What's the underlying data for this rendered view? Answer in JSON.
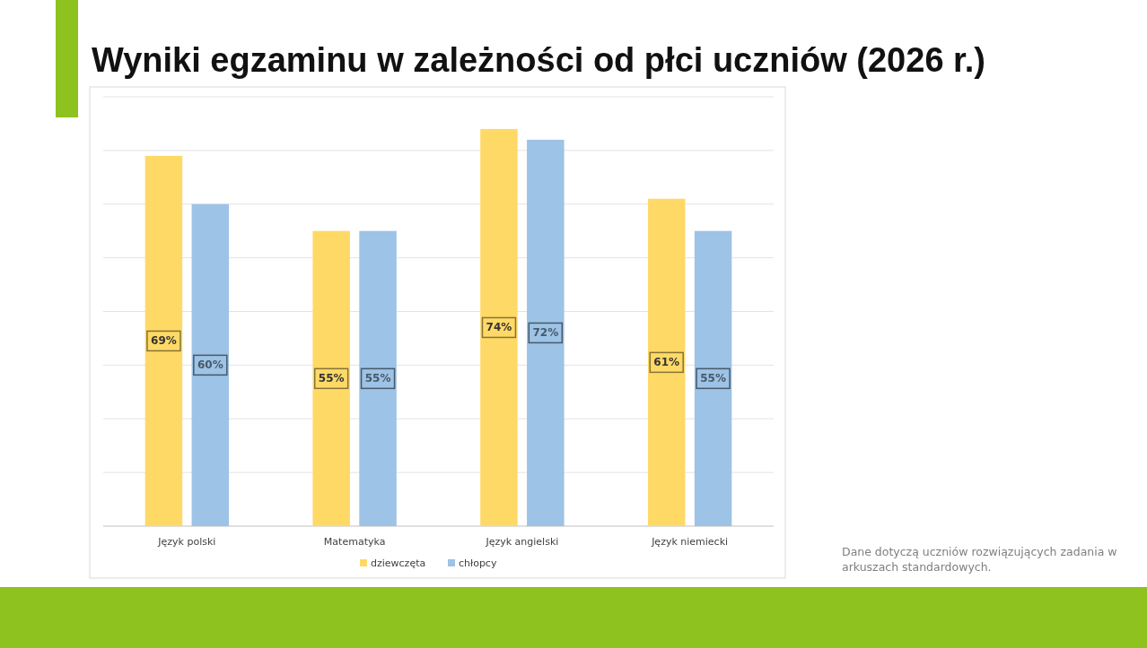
{
  "chart_data": {
    "type": "bar",
    "title": "Wyniki egzaminu w zależności od płci uczniów (2026 r.)",
    "categories": [
      "Język polski",
      "Matematyka",
      "Język angielski",
      "Język niemiecki"
    ],
    "series": [
      {
        "name": "dziewczęta",
        "color": "#ffd966",
        "values": [
          69,
          55,
          74,
          61
        ],
        "value_labels": [
          "69%",
          "55%",
          "74%",
          "61%"
        ]
      },
      {
        "name": "chłopcy",
        "color": "#9dc3e6",
        "values": [
          60,
          55,
          72,
          55
        ],
        "value_labels": [
          "60%",
          "55%",
          "72%",
          "55%"
        ]
      }
    ],
    "ylim": [
      0,
      80
    ],
    "yticks": [
      {
        "value": 0,
        "label": null
      },
      {
        "value": 10,
        "label": null
      },
      {
        "value": 20,
        "label": null
      },
      {
        "value": 30,
        "label": null
      },
      {
        "value": 40,
        "label": null
      },
      {
        "value": 50,
        "label": null
      },
      {
        "value": 60,
        "label": null
      },
      {
        "value": 70,
        "label": null
      },
      {
        "value": 80,
        "label": null
      }
    ],
    "tick_labels": "x",
    "grid": "y",
    "legend": "bottom",
    "annotations": [
      "Dane dotyczą uczniów rozwiązujących zadania w arkuszach standardowych."
    ]
  }
}
